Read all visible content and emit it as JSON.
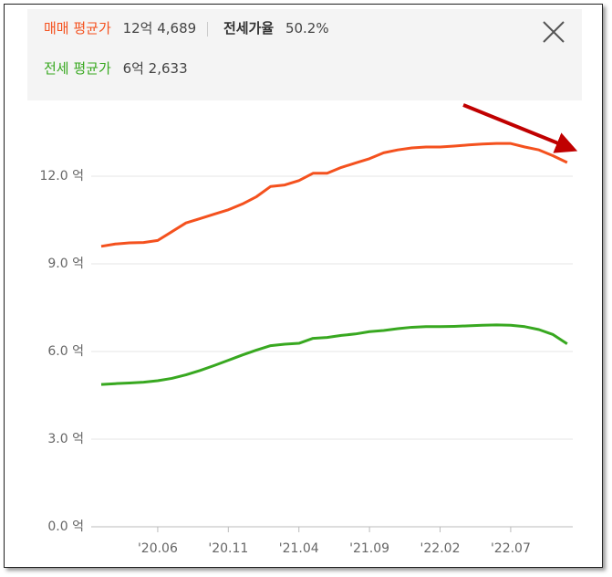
{
  "header": {
    "sale_value": "12억 4,689",
    "ratio_label": "전세가율",
    "ratio_value": "50.2%",
    "jeonse_value": "6억 2,633"
  },
  "chart_data": {
    "type": "line",
    "categories": [
      null,
      null,
      null,
      null,
      "'20.06",
      null,
      null,
      null,
      null,
      "'20.11",
      null,
      null,
      null,
      null,
      "'21.04",
      null,
      null,
      null,
      null,
      "'21.09",
      null,
      null,
      null,
      null,
      "'22.02",
      null,
      null,
      null,
      null,
      "'22.07",
      null,
      null,
      null,
      null
    ],
    "series": [
      {
        "name": "매매 평균가",
        "color": "#f4511e",
        "values": [
          9.6,
          9.68,
          9.72,
          9.73,
          9.8,
          10.1,
          10.4,
          10.55,
          10.7,
          10.85,
          11.05,
          11.3,
          11.65,
          11.7,
          11.85,
          12.1,
          12.1,
          12.3,
          12.45,
          12.6,
          12.8,
          12.9,
          12.97,
          13.0,
          13.0,
          13.03,
          13.07,
          13.1,
          13.12,
          13.12,
          13.0,
          12.9,
          12.7,
          12.47
        ]
      },
      {
        "name": "전세 평균가",
        "color": "#38a820",
        "values": [
          4.87,
          4.9,
          4.92,
          4.95,
          5.0,
          5.08,
          5.2,
          5.35,
          5.52,
          5.7,
          5.88,
          6.05,
          6.2,
          6.25,
          6.28,
          6.45,
          6.48,
          6.55,
          6.6,
          6.68,
          6.72,
          6.78,
          6.83,
          6.85,
          6.85,
          6.86,
          6.88,
          6.9,
          6.91,
          6.9,
          6.85,
          6.75,
          6.58,
          6.26
        ]
      }
    ],
    "ylim": [
      0,
      14
    ],
    "yticks": [
      {
        "value": 0,
        "label": "0.0 억"
      },
      {
        "value": 3,
        "label": "3.0 억"
      },
      {
        "value": 6,
        "label": "6.0 억"
      },
      {
        "value": 9,
        "label": "9.0 억"
      },
      {
        "value": 12,
        "label": "12.0 억"
      }
    ],
    "grid": true
  }
}
